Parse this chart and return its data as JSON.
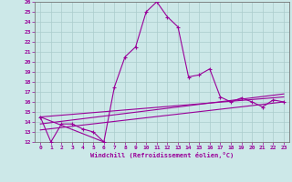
{
  "xlabel": "Windchill (Refroidissement éolien,°C)",
  "x_values": [
    0,
    1,
    2,
    3,
    4,
    5,
    6,
    7,
    8,
    9,
    10,
    11,
    12,
    13,
    14,
    15,
    16,
    17,
    18,
    19,
    20,
    21,
    22,
    23
  ],
  "main_line": [
    14.5,
    12.0,
    13.8,
    13.8,
    13.3,
    13.0,
    12.0,
    17.5,
    20.5,
    21.5,
    25.0,
    26.0,
    24.5,
    23.5,
    18.5,
    18.7,
    19.3,
    16.5,
    16.0,
    16.4,
    16.0,
    15.5,
    16.2,
    16.0
  ],
  "trend_line1_x": [
    0,
    23
  ],
  "trend_line1_y": [
    13.2,
    16.0
  ],
  "trend_line2_x": [
    0,
    23
  ],
  "trend_line2_y": [
    13.8,
    16.8
  ],
  "trend_line3_x": [
    0,
    23
  ],
  "trend_line3_y": [
    14.5,
    16.5
  ],
  "connecting_line_x": [
    0,
    6
  ],
  "connecting_line_y": [
    14.5,
    12.0
  ],
  "main_color": "#990099",
  "bg_color": "#cce8e8",
  "grid_color": "#aacccc",
  "ylim": [
    12,
    26
  ],
  "xlim": [
    -0.5,
    23.5
  ],
  "yticks": [
    12,
    13,
    14,
    15,
    16,
    17,
    18,
    19,
    20,
    21,
    22,
    23,
    24,
    25,
    26
  ],
  "xticks": [
    0,
    1,
    2,
    3,
    4,
    5,
    6,
    7,
    8,
    9,
    10,
    11,
    12,
    13,
    14,
    15,
    16,
    17,
    18,
    19,
    20,
    21,
    22,
    23
  ]
}
